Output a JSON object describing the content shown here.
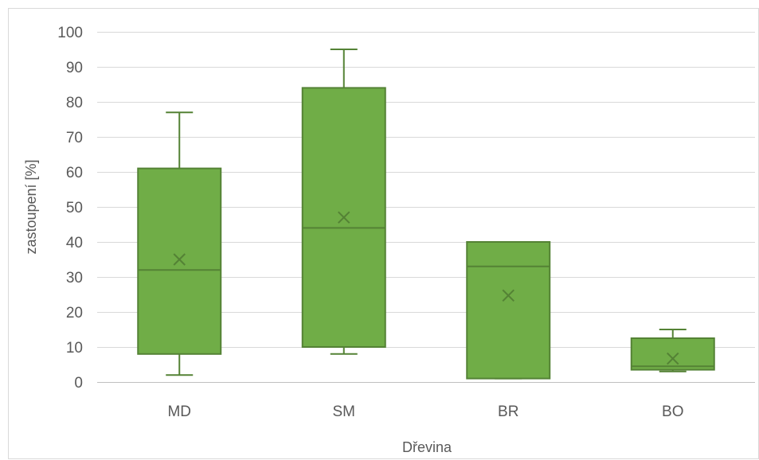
{
  "chart_data": {
    "type": "boxplot",
    "xlabel": "Dřevina",
    "ylabel": "zastoupení [%]",
    "ylim": [
      0,
      100
    ],
    "yticks": [
      0,
      10,
      20,
      30,
      40,
      50,
      60,
      70,
      80,
      90,
      100
    ],
    "grid": true,
    "legend": "none",
    "colors": {
      "box_fill": "#70ad47",
      "box_stroke": "#548235"
    },
    "categories": [
      "MD",
      "SM",
      "BR",
      "BO"
    ],
    "boxes": [
      {
        "category": "MD",
        "min": 2,
        "q1": 8,
        "median": 32,
        "q3": 61,
        "max": 77,
        "mean": 35
      },
      {
        "category": "SM",
        "min": 8,
        "q1": 10,
        "median": 44,
        "q3": 84,
        "max": 95,
        "mean": 47
      },
      {
        "category": "BR",
        "min": 1,
        "q1": 1,
        "median": 33,
        "q3": 40,
        "max": 40,
        "mean": 24.7
      },
      {
        "category": "BO",
        "min": 3,
        "q1": 3.5,
        "median": 4.5,
        "q3": 12.5,
        "max": 15,
        "mean": 6.7
      }
    ]
  }
}
